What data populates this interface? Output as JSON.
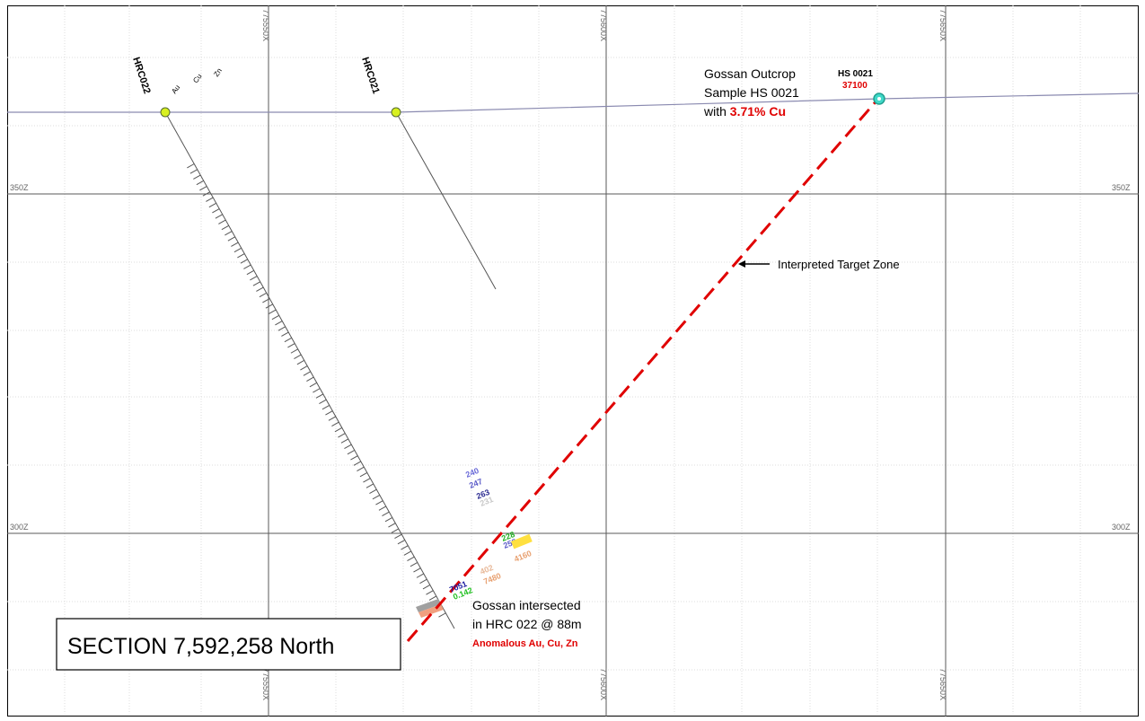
{
  "section_title": "SECTION 7,592,258 North",
  "grid": {
    "x_labels": [
      "775550X",
      "775600X",
      "775650X"
    ],
    "z_labels": [
      "350Z",
      "300Z"
    ]
  },
  "holes": [
    {
      "id": "HRC022",
      "elements": [
        "Au",
        "Cu",
        "Zn"
      ]
    },
    {
      "id": "HRC021"
    }
  ],
  "outcrop": {
    "sample_id": "HS 0021",
    "value": "37100",
    "line1": "Gossan Outcrop",
    "line2": "Sample HS 0021",
    "line3_prefix": "with ",
    "line3_grade": "3.71% Cu"
  },
  "target_label": "Interpreted Target Zone",
  "intersect": {
    "line1": "Gossan intersected",
    "line2": "in HRC 022  @ 88m",
    "line3": "Anomalous Au, Cu, Zn"
  },
  "assays": {
    "group_a": [
      "240",
      "247",
      "263",
      "231"
    ],
    "group_b": [
      "228",
      "258"
    ],
    "group_c": [
      "402",
      "7480"
    ],
    "group_d": [
      "4160"
    ],
    "group_e": [
      "7051",
      "0.142"
    ]
  },
  "colors": {
    "grid_major": "#5a5a5a",
    "grid_minor": "#d8d8d8",
    "surface": "#8a8ab0",
    "target_line": "#e00000",
    "collar_fill": "#d8f020",
    "outcrop_marker": "#40d8c8",
    "highlight_red": "#e00000",
    "assay_blue": "#5a5ac8",
    "assay_green": "#20b020",
    "assay_orange": "#e8a070",
    "assay_yellow": "#e8d000"
  }
}
